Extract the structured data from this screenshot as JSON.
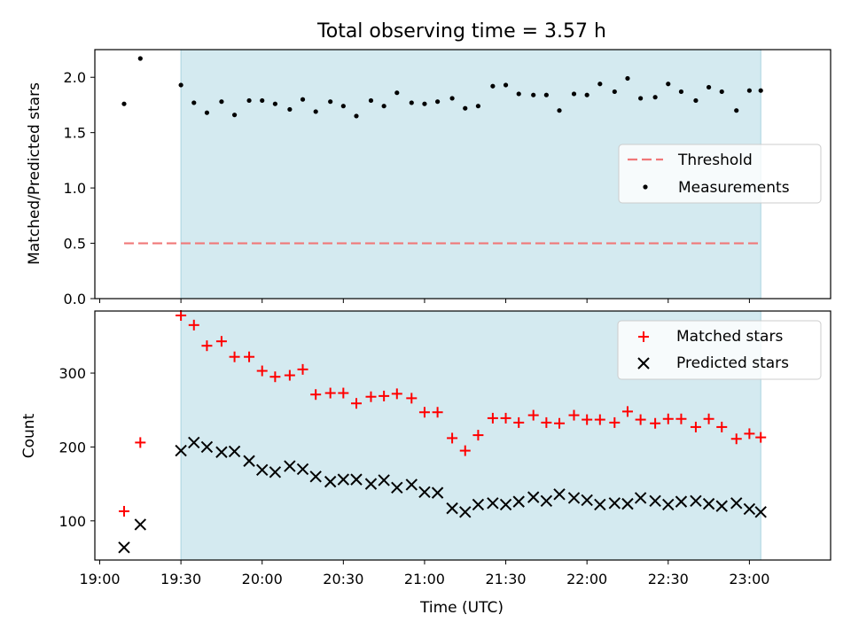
{
  "chart_data": [
    {
      "type": "scatter",
      "title": "Total observing time = 3.57 h",
      "ylabel": "Matched/Predicted stars",
      "ylim": [
        0,
        2.25
      ],
      "yticks": [
        "0.0",
        "0.5",
        "1.0",
        "1.5",
        "2.0"
      ],
      "yticks_values": [
        0,
        0.5,
        1.0,
        1.5,
        2.0
      ],
      "x_range_hours": [
        18.97,
        23.5
      ],
      "shaded_span_hours": [
        19.5,
        23.07
      ],
      "shade_color": "#d4eaf0",
      "legend_position": "center-right",
      "threshold": {
        "name": "Threshold",
        "value": 0.5,
        "x_start": 19.15,
        "x_end": 23.07,
        "color": "#f07878",
        "style": "dashed"
      },
      "series": [
        {
          "name": "Measurements",
          "color": "#000000",
          "x": [
            19.15,
            19.25,
            19.5,
            19.58,
            19.66,
            19.75,
            19.83,
            19.92,
            20.0,
            20.08,
            20.17,
            20.25,
            20.33,
            20.42,
            20.5,
            20.58,
            20.67,
            20.75,
            20.83,
            20.92,
            21.0,
            21.08,
            21.17,
            21.25,
            21.33,
            21.42,
            21.5,
            21.58,
            21.67,
            21.75,
            21.83,
            21.92,
            22.0,
            22.08,
            22.17,
            22.25,
            22.33,
            22.42,
            22.5,
            22.58,
            22.67,
            22.75,
            22.83,
            22.92,
            23.0,
            23.07
          ],
          "y": [
            1.76,
            2.17,
            1.93,
            1.77,
            1.68,
            1.78,
            1.66,
            1.79,
            1.79,
            1.76,
            1.71,
            1.8,
            1.69,
            1.78,
            1.74,
            1.65,
            1.79,
            1.74,
            1.86,
            1.77,
            1.76,
            1.78,
            1.81,
            1.72,
            1.74,
            1.92,
            1.93,
            1.85,
            1.84,
            1.84,
            1.7,
            1.85,
            1.84,
            1.94,
            1.87,
            1.99,
            1.81,
            1.82,
            1.94,
            1.87,
            1.79,
            1.91,
            1.87,
            1.7,
            1.88,
            1.88
          ]
        }
      ]
    },
    {
      "type": "scatter",
      "xlabel": "Time (UTC)",
      "ylabel": "Count",
      "ylim": [
        47,
        384
      ],
      "yticks": [
        "100",
        "200",
        "300"
      ],
      "yticks_values": [
        100,
        200,
        300
      ],
      "x_range_hours": [
        18.97,
        23.5
      ],
      "xticks": [
        "19:00",
        "19:30",
        "20:00",
        "20:30",
        "21:00",
        "21:30",
        "22:00",
        "22:30",
        "23:00"
      ],
      "xticks_values": [
        19.0,
        19.5,
        20.0,
        20.5,
        21.0,
        21.5,
        22.0,
        22.5,
        23.0
      ],
      "shaded_span_hours": [
        19.5,
        23.07
      ],
      "legend_position": "top-right",
      "series": [
        {
          "name": "Matched stars",
          "marker": "+",
          "color": "#ff0000",
          "x": [
            19.15,
            19.25,
            19.5,
            19.58,
            19.66,
            19.75,
            19.83,
            19.92,
            20.0,
            20.08,
            20.17,
            20.25,
            20.33,
            20.42,
            20.5,
            20.58,
            20.67,
            20.75,
            20.83,
            20.92,
            21.0,
            21.08,
            21.17,
            21.25,
            21.33,
            21.42,
            21.5,
            21.58,
            21.67,
            21.75,
            21.83,
            21.92,
            22.0,
            22.08,
            22.17,
            22.25,
            22.33,
            22.42,
            22.5,
            22.58,
            22.67,
            22.75,
            22.83,
            22.92,
            23.0,
            23.07
          ],
          "y": [
            113,
            206,
            378,
            365,
            337,
            343,
            322,
            322,
            303,
            295,
            297,
            305,
            271,
            273,
            273,
            259,
            268,
            269,
            272,
            266,
            247,
            247,
            212,
            195,
            216,
            239,
            239,
            233,
            243,
            233,
            232,
            243,
            237,
            237,
            233,
            248,
            237,
            232,
            238,
            238,
            227,
            238,
            227,
            211,
            218,
            213
          ]
        },
        {
          "name": "Predicted stars",
          "marker": "x",
          "color": "#000000",
          "x": [
            19.15,
            19.25,
            19.5,
            19.58,
            19.66,
            19.75,
            19.83,
            19.92,
            20.0,
            20.08,
            20.17,
            20.25,
            20.33,
            20.42,
            20.5,
            20.58,
            20.67,
            20.75,
            20.83,
            20.92,
            21.0,
            21.08,
            21.17,
            21.25,
            21.33,
            21.42,
            21.5,
            21.58,
            21.67,
            21.75,
            21.83,
            21.92,
            22.0,
            22.08,
            22.17,
            22.25,
            22.33,
            22.42,
            22.5,
            22.58,
            22.67,
            22.75,
            22.83,
            22.92,
            23.0,
            23.07
          ],
          "y": [
            64,
            95,
            195,
            206,
            200,
            193,
            194,
            181,
            169,
            166,
            174,
            170,
            160,
            153,
            156,
            156,
            150,
            155,
            145,
            149,
            139,
            138,
            117,
            112,
            122,
            124,
            122,
            126,
            132,
            127,
            136,
            131,
            128,
            122,
            124,
            123,
            131,
            127,
            122,
            126,
            127,
            123,
            120,
            124,
            116,
            112
          ]
        }
      ]
    }
  ]
}
